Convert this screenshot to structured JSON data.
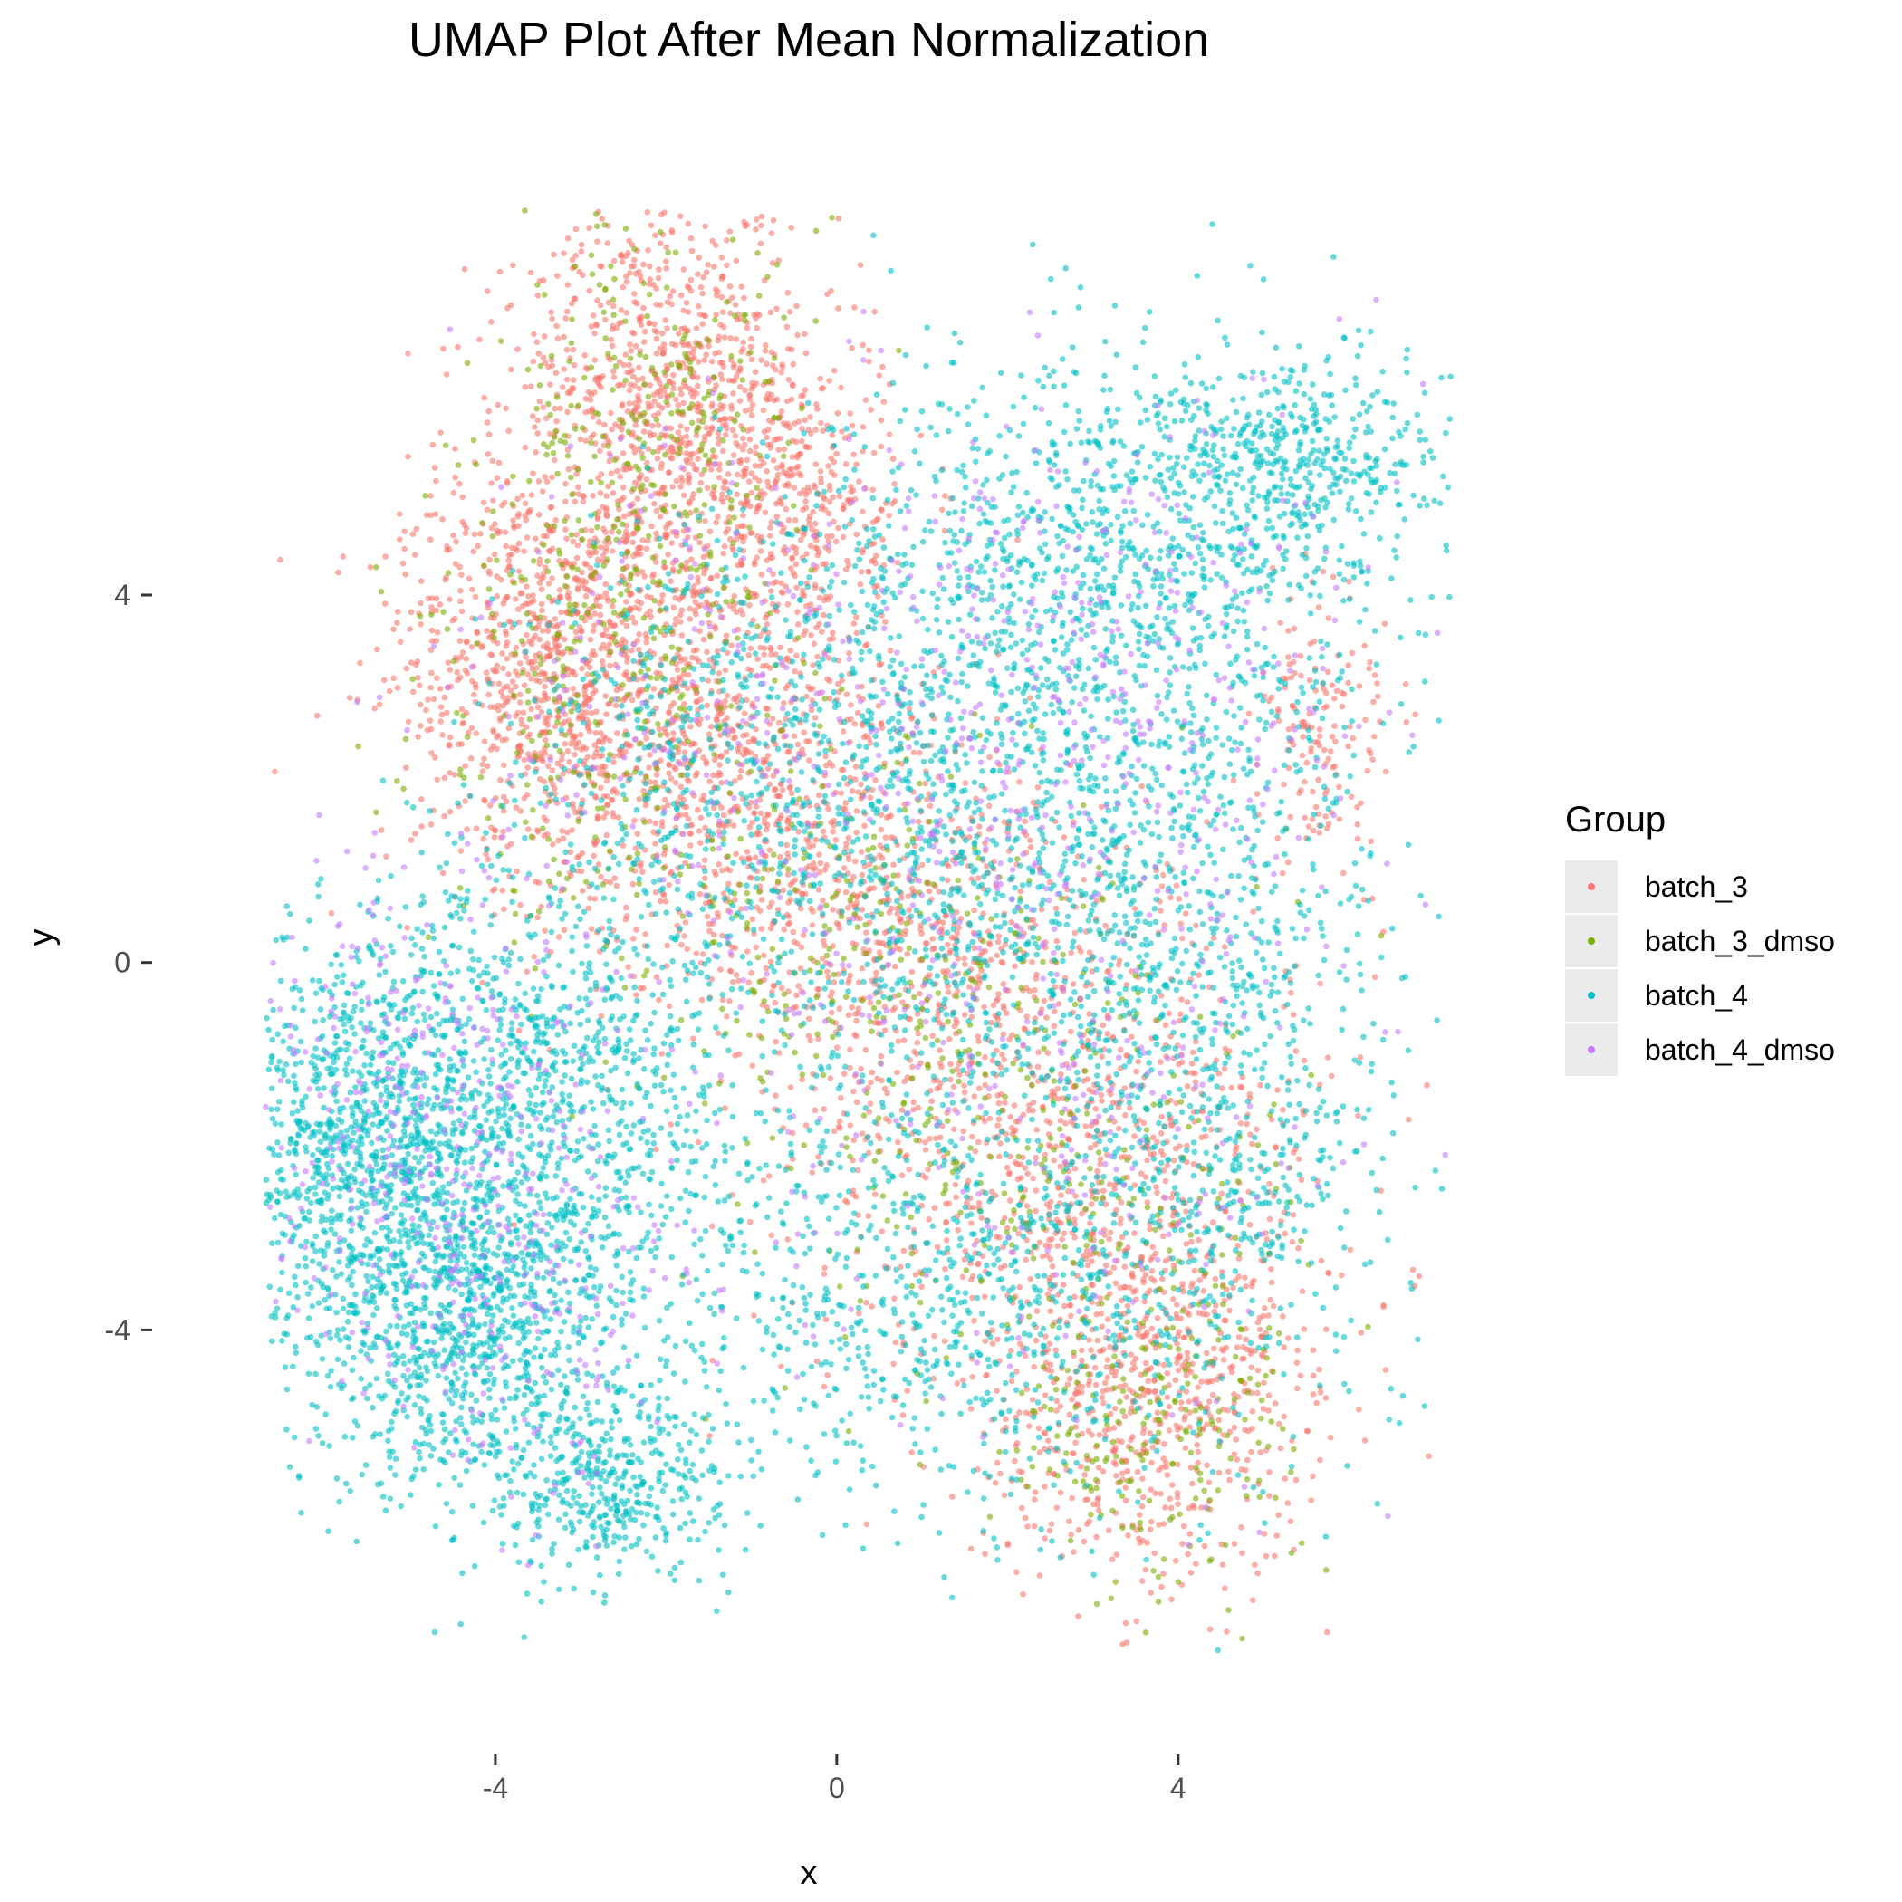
{
  "chart_data": {
    "type": "scatter",
    "title": "UMAP Plot After Mean Normalization",
    "xlabel": "x",
    "ylabel": "y",
    "xlim": [
      -8.0,
      7.6
    ],
    "ylim": [
      -8.6,
      8.9
    ],
    "x_ticks": [
      -4,
      0,
      4
    ],
    "y_ticks": [
      -4,
      0,
      4
    ],
    "x_tick_labels": [
      "-4",
      "0",
      "4"
    ],
    "y_tick_labels": [
      "-4",
      "0",
      "4"
    ],
    "grid": false,
    "background": "#ffffff",
    "point_opacity": 0.6,
    "legend": {
      "title": "Group",
      "position": "right",
      "entries": [
        {
          "label": "batch_3",
          "color": "#F8766D"
        },
        {
          "label": "batch_3_dmso",
          "color": "#7CAE00"
        },
        {
          "label": "batch_4",
          "color": "#00BFC4"
        },
        {
          "label": "batch_4_dmso",
          "color": "#C77CFF"
        }
      ]
    },
    "series": [
      {
        "name": "batch_3",
        "color": "#F8766D",
        "regions": [
          {
            "cx": -2.0,
            "cy": 6.2,
            "sx": 0.9,
            "sy": 1.1,
            "n": 900
          },
          {
            "cx": -3.5,
            "cy": 3.3,
            "sx": 0.9,
            "sy": 1.2,
            "n": 900
          },
          {
            "cx": -1.5,
            "cy": 2.5,
            "sx": 1.2,
            "sy": 1.2,
            "n": 900
          },
          {
            "cx": -0.5,
            "cy": 5.0,
            "sx": 0.7,
            "sy": 0.7,
            "n": 350
          },
          {
            "cx": 0.5,
            "cy": 0.5,
            "sx": 1.2,
            "sy": 1.0,
            "n": 550
          },
          {
            "cx": 2.5,
            "cy": -1.8,
            "sx": 1.6,
            "sy": 1.4,
            "n": 900
          },
          {
            "cx": 3.7,
            "cy": -4.6,
            "sx": 1.0,
            "sy": 1.1,
            "n": 750
          },
          {
            "cx": 5.7,
            "cy": 2.5,
            "sx": 0.4,
            "sy": 0.8,
            "n": 150
          }
        ]
      },
      {
        "name": "batch_3_dmso",
        "color": "#7CAE00",
        "regions": [
          {
            "cx": -2.0,
            "cy": 6.0,
            "sx": 0.9,
            "sy": 1.1,
            "n": 230
          },
          {
            "cx": -2.8,
            "cy": 3.2,
            "sx": 1.1,
            "sy": 1.5,
            "n": 320
          },
          {
            "cx": 0.3,
            "cy": 0.3,
            "sx": 1.3,
            "sy": 1.1,
            "n": 230
          },
          {
            "cx": 2.7,
            "cy": -2.2,
            "sx": 1.5,
            "sy": 1.5,
            "n": 260
          },
          {
            "cx": 3.8,
            "cy": -5.0,
            "sx": 0.9,
            "sy": 0.8,
            "n": 200
          }
        ]
      },
      {
        "name": "batch_4",
        "color": "#00BFC4",
        "regions": [
          {
            "cx": -5.5,
            "cy": -2.0,
            "sx": 0.9,
            "sy": 1.2,
            "n": 1200
          },
          {
            "cx": -4.3,
            "cy": -4.0,
            "sx": 0.9,
            "sy": 1.0,
            "n": 900
          },
          {
            "cx": -3.2,
            "cy": -1.5,
            "sx": 1.1,
            "sy": 1.3,
            "n": 900
          },
          {
            "cx": -2.6,
            "cy": -5.7,
            "sx": 0.7,
            "sy": 0.5,
            "n": 400
          },
          {
            "cx": 3.0,
            "cy": 4.3,
            "sx": 1.8,
            "sy": 1.2,
            "n": 1100
          },
          {
            "cx": 5.2,
            "cy": 5.5,
            "sx": 1.0,
            "sy": 0.5,
            "n": 450
          },
          {
            "cx": 2.5,
            "cy": 1.0,
            "sx": 1.8,
            "sy": 1.5,
            "n": 1100
          },
          {
            "cx": -1.0,
            "cy": 2.2,
            "sx": 1.5,
            "sy": 1.2,
            "n": 600
          },
          {
            "cx": 1.5,
            "cy": -3.5,
            "sx": 2.0,
            "sy": 1.3,
            "n": 900
          },
          {
            "cx": 4.5,
            "cy": -1.5,
            "sx": 1.0,
            "sy": 1.6,
            "n": 500
          }
        ]
      },
      {
        "name": "batch_4_dmso",
        "color": "#C77CFF",
        "regions": [
          {
            "cx": -5.0,
            "cy": -1.5,
            "sx": 1.0,
            "sy": 1.5,
            "n": 300
          },
          {
            "cx": -3.8,
            "cy": -3.6,
            "sx": 1.0,
            "sy": 1.2,
            "n": 200
          },
          {
            "cx": 2.7,
            "cy": 3.2,
            "sx": 1.7,
            "sy": 1.5,
            "n": 420
          },
          {
            "cx": 2.0,
            "cy": -1.0,
            "sx": 2.0,
            "sy": 2.0,
            "n": 330
          },
          {
            "cx": -2.0,
            "cy": 3.0,
            "sx": 1.3,
            "sy": 1.6,
            "n": 180
          }
        ]
      }
    ]
  }
}
